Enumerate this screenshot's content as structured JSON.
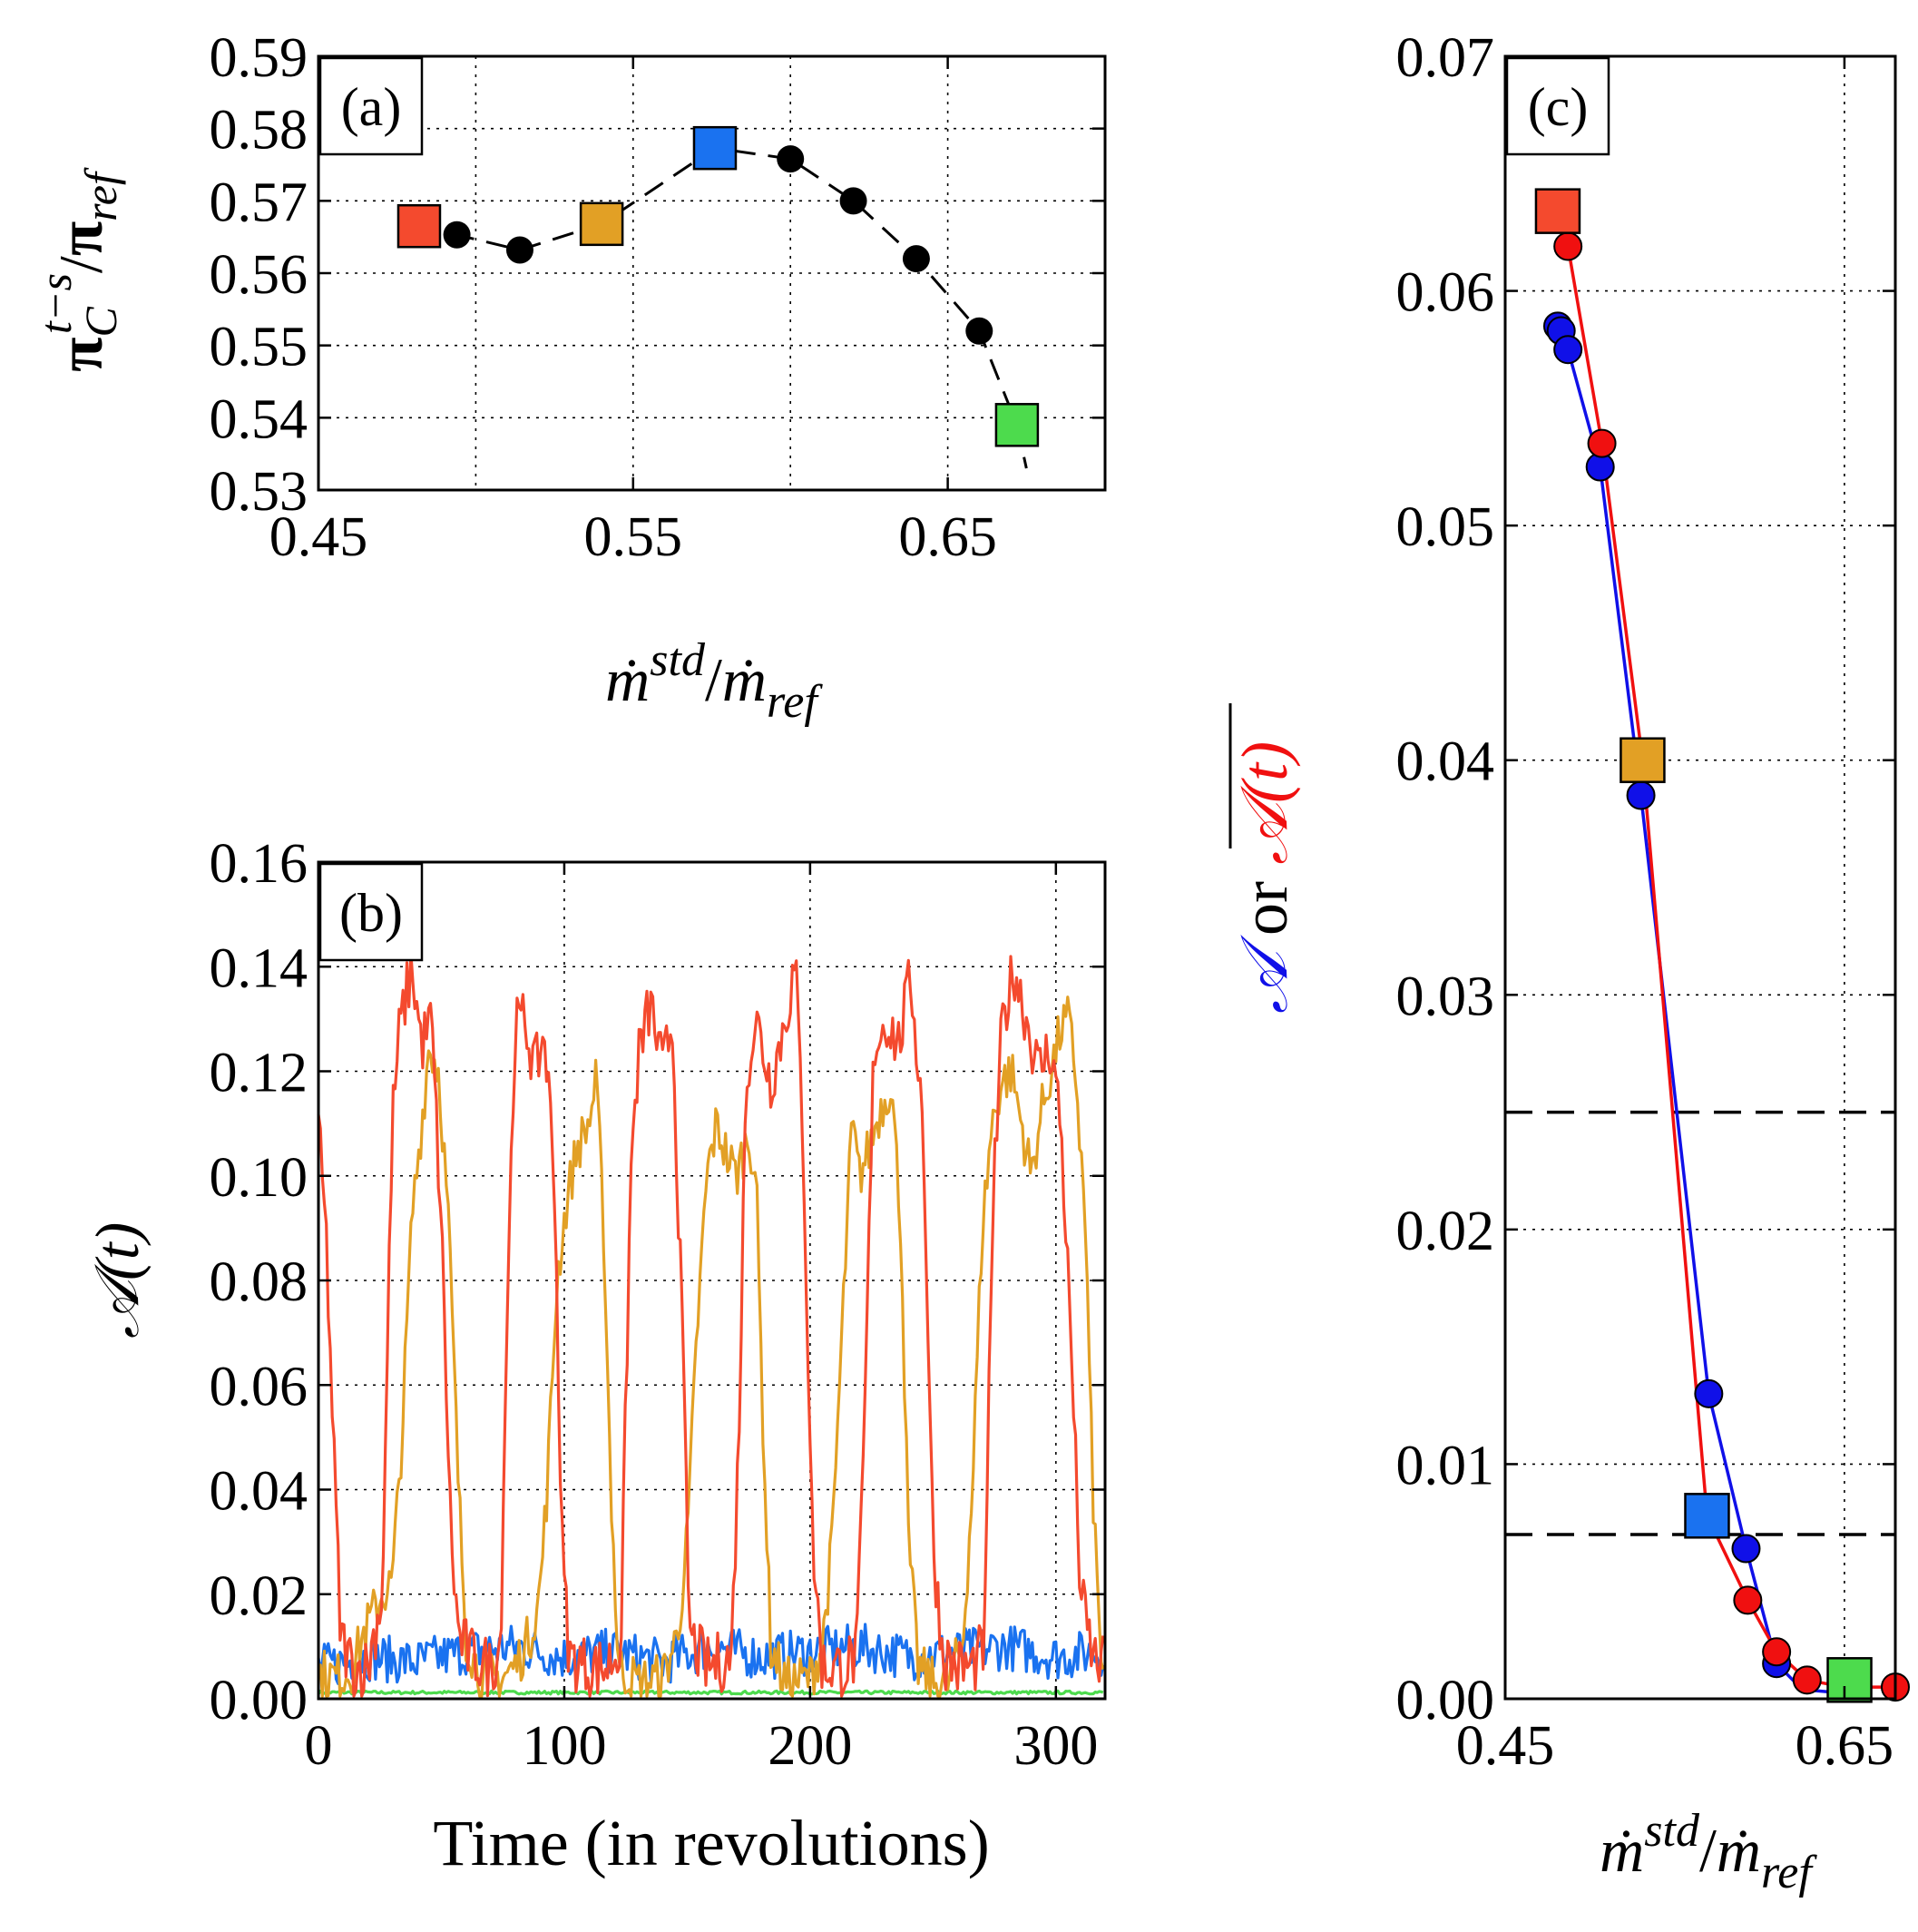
{
  "colors": {
    "red": "#f44a2e",
    "orange": "#e2a025",
    "blue": "#1a72f0",
    "green": "#4ddb4d",
    "blue_line": "#1010e8",
    "red_line": "#f01010",
    "black": "#000000"
  },
  "chart_data": [
    {
      "panel": "a",
      "type": "scatter",
      "panel_label": "(a)",
      "xlabel_parts": [
        "ṁ",
        "std",
        "/",
        "ṁ",
        "ref"
      ],
      "ylabel_parts": [
        "π",
        "C",
        "t−s",
        "/",
        "π",
        "ref"
      ],
      "xlim": [
        0.45,
        0.7
      ],
      "ylim": [
        0.53,
        0.59
      ],
      "xticks": [
        0.45,
        0.55,
        0.65
      ],
      "xtick_labels": [
        "0.45",
        "0.55",
        "0.65"
      ],
      "xgrid": [
        0.45,
        0.5,
        0.55,
        0.6,
        0.65,
        0.7
      ],
      "yticks": [
        0.53,
        0.54,
        0.55,
        0.56,
        0.57,
        0.58,
        0.59
      ],
      "ytick_labels": [
        "0.53",
        "0.54",
        "0.55",
        "0.56",
        "0.57",
        "0.58",
        "0.59"
      ],
      "grid": true,
      "curve": {
        "style": "dashed",
        "x": [
          0.482,
          0.494,
          0.514,
          0.54,
          0.576,
          0.6,
          0.62,
          0.64,
          0.66,
          0.672,
          0.675
        ],
        "y": [
          0.5665,
          0.5653,
          0.5632,
          0.5668,
          0.5773,
          0.5758,
          0.57,
          0.562,
          0.552,
          0.539,
          0.533
        ]
      },
      "circles": {
        "x": [
          0.494,
          0.514,
          0.6,
          0.62,
          0.64,
          0.66
        ],
        "y": [
          0.5653,
          0.5632,
          0.5758,
          0.57,
          0.562,
          0.552
        ]
      },
      "squares": [
        {
          "x": 0.482,
          "y": 0.5665,
          "color": "red"
        },
        {
          "x": 0.54,
          "y": 0.5668,
          "color": "orange"
        },
        {
          "x": 0.576,
          "y": 0.5773,
          "color": "blue"
        },
        {
          "x": 0.672,
          "y": 0.539,
          "color": "green"
        }
      ]
    },
    {
      "panel": "b",
      "type": "line",
      "panel_label": "(b)",
      "xlabel": "Time (in revolutions)",
      "ylabel": "𝒜(t)",
      "xlim": [
        0,
        320
      ],
      "ylim": [
        0,
        0.16
      ],
      "xticks": [
        0,
        100,
        200,
        300
      ],
      "xtick_labels": [
        "0",
        "100",
        "200",
        "300"
      ],
      "xgrid": [
        100,
        200,
        300
      ],
      "yticks": [
        0.0,
        0.02,
        0.04,
        0.06,
        0.08,
        0.1,
        0.12,
        0.14,
        0.16
      ],
      "ytick_labels": [
        "0.00",
        "0.02",
        "0.04",
        "0.06",
        "0.08",
        "0.10",
        "0.12",
        "0.14",
        "0.16"
      ],
      "grid": true,
      "series": [
        {
          "name": "red",
          "color": "red",
          "keys": [
            [
              0,
              0.108
            ],
            [
              3,
              0.09
            ],
            [
              6,
              0.05
            ],
            [
              9,
              0.012
            ],
            [
              14,
              0.006
            ],
            [
              20,
              0.006
            ],
            [
              26,
              0.02
            ],
            [
              30,
              0.11
            ],
            [
              33,
              0.128
            ],
            [
              38,
              0.14
            ],
            [
              42,
              0.125
            ],
            [
              46,
              0.13
            ],
            [
              50,
              0.09
            ],
            [
              54,
              0.03
            ],
            [
              57,
              0.012
            ],
            [
              62,
              0.008
            ],
            [
              70,
              0.006
            ],
            [
              74,
              0.01
            ],
            [
              77,
              0.08
            ],
            [
              80,
              0.128
            ],
            [
              84,
              0.13
            ],
            [
              88,
              0.12
            ],
            [
              92,
              0.127
            ],
            [
              96,
              0.1
            ],
            [
              99,
              0.03
            ],
            [
              102,
              0.008
            ],
            [
              110,
              0.006
            ],
            [
              117,
              0.006
            ],
            [
              123,
              0.01
            ],
            [
              127,
              0.1
            ],
            [
              130,
              0.122
            ],
            [
              135,
              0.133
            ],
            [
              140,
              0.12
            ],
            [
              144,
              0.13
            ],
            [
              148,
              0.07
            ],
            [
              151,
              0.012
            ],
            [
              158,
              0.006
            ],
            [
              168,
              0.008
            ],
            [
              171,
              0.05
            ],
            [
              174,
              0.12
            ],
            [
              178,
              0.13
            ],
            [
              184,
              0.118
            ],
            [
              189,
              0.128
            ],
            [
              194,
              0.14
            ],
            [
              197,
              0.11
            ],
            [
              201,
              0.03
            ],
            [
              205,
              0.006
            ],
            [
              213,
              0.006
            ],
            [
              219,
              0.008
            ],
            [
              222,
              0.05
            ],
            [
              226,
              0.125
            ],
            [
              231,
              0.13
            ],
            [
              236,
              0.125
            ],
            [
              241,
              0.138
            ],
            [
              246,
              0.11
            ],
            [
              250,
              0.03
            ],
            [
              254,
              0.008
            ],
            [
              260,
              0.006
            ],
            [
              266,
              0.006
            ],
            [
              271,
              0.01
            ],
            [
              274,
              0.09
            ],
            [
              278,
              0.128
            ],
            [
              283,
              0.14
            ],
            [
              288,
              0.13
            ],
            [
              293,
              0.12
            ],
            [
              298,
              0.125
            ],
            [
              302,
              0.11
            ],
            [
              306,
              0.07
            ],
            [
              310,
              0.02
            ],
            [
              315,
              0.008
            ],
            [
              320,
              0.006
            ]
          ]
        },
        {
          "name": "orange",
          "color": "orange",
          "keys": [
            [
              0,
              0.005
            ],
            [
              8,
              0.004
            ],
            [
              14,
              0.006
            ],
            [
              18,
              0.012
            ],
            [
              22,
              0.016
            ],
            [
              26,
              0.02
            ],
            [
              30,
              0.022
            ],
            [
              34,
              0.05
            ],
            [
              38,
              0.092
            ],
            [
              42,
              0.11
            ],
            [
              45,
              0.125
            ],
            [
              49,
              0.12
            ],
            [
              53,
              0.09
            ],
            [
              57,
              0.04
            ],
            [
              60,
              0.012
            ],
            [
              66,
              0.004
            ],
            [
              74,
              0.004
            ],
            [
              80,
              0.006
            ],
            [
              86,
              0.012
            ],
            [
              90,
              0.02
            ],
            [
              93,
              0.04
            ],
            [
              97,
              0.08
            ],
            [
              101,
              0.095
            ],
            [
              105,
              0.105
            ],
            [
              110,
              0.11
            ],
            [
              113,
              0.118
            ],
            [
              116,
              0.09
            ],
            [
              119,
              0.04
            ],
            [
              122,
              0.006
            ],
            [
              130,
              0.003
            ],
            [
              140,
              0.004
            ],
            [
              146,
              0.012
            ],
            [
              150,
              0.03
            ],
            [
              154,
              0.07
            ],
            [
              158,
              0.1
            ],
            [
              162,
              0.11
            ],
            [
              166,
              0.104
            ],
            [
              170,
              0.1
            ],
            [
              175,
              0.108
            ],
            [
              178,
              0.1
            ],
            [
              181,
              0.05
            ],
            [
              184,
              0.01
            ],
            [
              190,
              0.003
            ],
            [
              200,
              0.004
            ],
            [
              205,
              0.01
            ],
            [
              209,
              0.03
            ],
            [
              213,
              0.07
            ],
            [
              217,
              0.11
            ],
            [
              220,
              0.1
            ],
            [
              224,
              0.105
            ],
            [
              228,
              0.112
            ],
            [
              233,
              0.118
            ],
            [
              237,
              0.09
            ],
            [
              240,
              0.03
            ],
            [
              244,
              0.006
            ],
            [
              250,
              0.003
            ],
            [
              256,
              0.003
            ],
            [
              262,
              0.01
            ],
            [
              266,
              0.04
            ],
            [
              270,
              0.09
            ],
            [
              274,
              0.11
            ],
            [
              278,
              0.118
            ],
            [
              282,
              0.12
            ],
            [
              286,
              0.11
            ],
            [
              290,
              0.1
            ],
            [
              294,
              0.112
            ],
            [
              298,
              0.12
            ],
            [
              302,
              0.128
            ],
            [
              305,
              0.13
            ],
            [
              308,
              0.12
            ],
            [
              312,
              0.09
            ],
            [
              315,
              0.04
            ],
            [
              318,
              0.01
            ],
            [
              320,
              0.004
            ]
          ]
        },
        {
          "name": "blue",
          "color": "blue",
          "keys": [
            [
              0,
              0.006
            ],
            [
              20,
              0.008
            ],
            [
              40,
              0.007
            ],
            [
              60,
              0.009
            ],
            [
              80,
              0.01
            ],
            [
              100,
              0.008
            ],
            [
              120,
              0.009
            ],
            [
              140,
              0.007
            ],
            [
              160,
              0.01
            ],
            [
              180,
              0.008
            ],
            [
              200,
              0.009
            ],
            [
              220,
              0.01
            ],
            [
              240,
              0.008
            ],
            [
              260,
              0.009
            ],
            [
              280,
              0.01
            ],
            [
              300,
              0.008
            ],
            [
              320,
              0.009
            ]
          ]
        },
        {
          "name": "green",
          "color": "green",
          "keys": [
            [
              0,
              0.0012
            ],
            [
              320,
              0.0012
            ]
          ]
        }
      ]
    },
    {
      "panel": "c",
      "type": "line",
      "panel_label": "(c)",
      "xlabel_parts": [
        "ṁ",
        "std",
        "/",
        "ṁ",
        "ref"
      ],
      "ylabel_parts": [
        "𝒜",
        " or ",
        "𝒜(t)"
      ],
      "xlim": [
        0.45,
        0.68
      ],
      "ylim": [
        0,
        0.07
      ],
      "xticks": [
        0.45,
        0.65
      ],
      "xtick_labels": [
        "0.45",
        "0.65"
      ],
      "xgrid": [
        0.65
      ],
      "yticks": [
        0.0,
        0.01,
        0.02,
        0.03,
        0.04,
        0.05,
        0.06,
        0.07
      ],
      "ytick_labels": [
        "0.00",
        "0.01",
        "0.02",
        "0.03",
        "0.04",
        "0.05",
        "0.06",
        "0.07"
      ],
      "grid": true,
      "hlines": [
        0.025,
        0.007
      ],
      "series": [
        {
          "name": "𝒜",
          "color": "blue_line",
          "x": [
            0.481,
            0.483,
            0.487,
            0.506,
            0.53,
            0.57,
            0.592,
            0.61,
            0.625,
            0.64
          ],
          "y": [
            0.0585,
            0.0583,
            0.0575,
            0.0525,
            0.0385,
            0.013,
            0.0064,
            0.0015,
            0.0004,
            0.0003
          ]
        },
        {
          "name": "𝒜(t) mean",
          "color": "red_line",
          "x": [
            0.481,
            0.487,
            0.507,
            0.531,
            0.569,
            0.593,
            0.61,
            0.628,
            0.65,
            0.68
          ],
          "y": [
            0.0634,
            0.0619,
            0.0535,
            0.04,
            0.0078,
            0.0042,
            0.002,
            0.0008,
            0.0005,
            0.0005
          ]
        }
      ],
      "markers_blue": {
        "x": [
          0.481,
          0.483,
          0.487,
          0.506,
          0.53,
          0.57,
          0.592,
          0.61
        ],
        "y": [
          0.0585,
          0.0583,
          0.0575,
          0.0525,
          0.0385,
          0.013,
          0.0064,
          0.0015
        ]
      },
      "markers_red": {
        "x": [
          0.483,
          0.487,
          0.507,
          0.593,
          0.61,
          0.628,
          0.65,
          0.68
        ],
        "y": [
          0.0635,
          0.0619,
          0.0535,
          0.0042,
          0.002,
          0.0008,
          0.0005,
          0.0005
        ]
      },
      "squares": [
        {
          "x": 0.481,
          "y": 0.0634,
          "color": "red"
        },
        {
          "x": 0.531,
          "y": 0.04,
          "color": "orange"
        },
        {
          "x": 0.569,
          "y": 0.0078,
          "color": "blue"
        },
        {
          "x": 0.653,
          "y": 0.0008,
          "color": "green"
        }
      ]
    }
  ]
}
